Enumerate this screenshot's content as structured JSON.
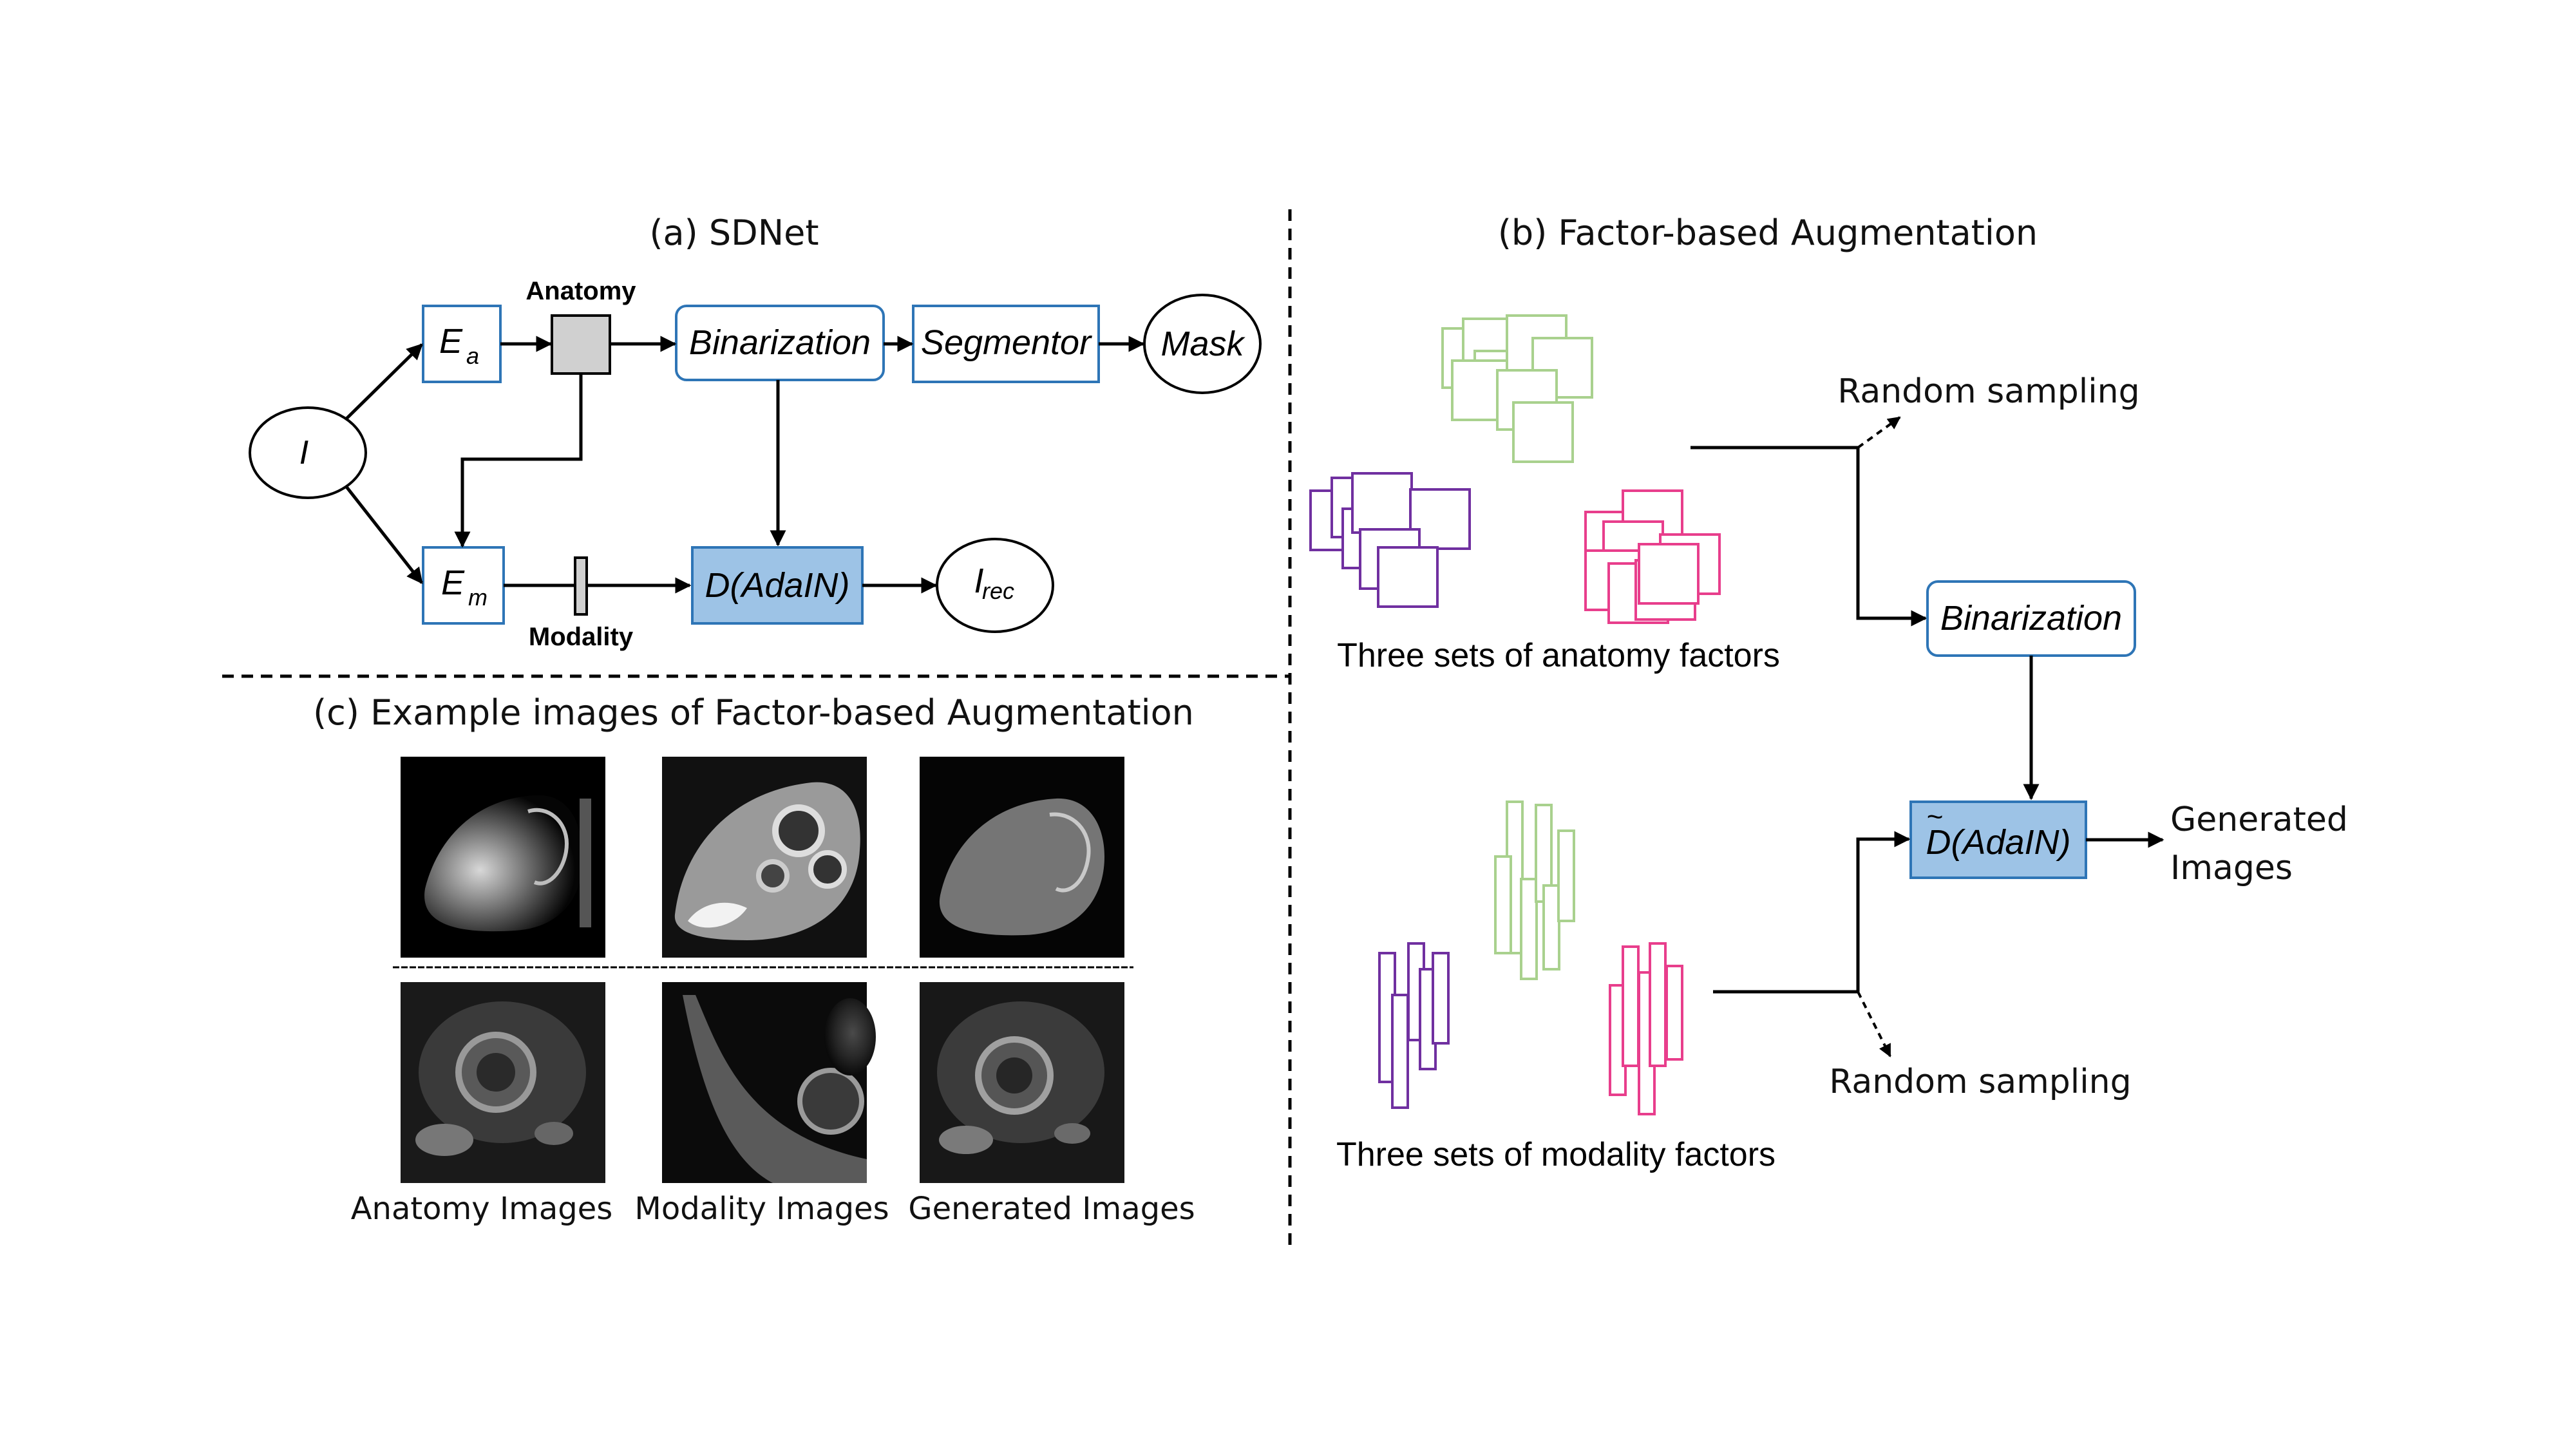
{
  "panel_a": {
    "title": "(a) SDNet",
    "input_label": "I",
    "ea_label": "E",
    "ea_sub": "a",
    "em_label": "E",
    "em_sub": "m",
    "anatomy_label": "Anatomy",
    "modality_label": "Modality",
    "binarization_label": "Binarization",
    "segmentor_label": "Segmentor",
    "mask_label": "Mask",
    "decoder_label": "D(AdaIN)",
    "rec_label": "I",
    "rec_sub": "rec"
  },
  "panel_b": {
    "title": "(b) Factor-based Augmentation",
    "anatomy_caption": "Three sets of anatomy factors",
    "modality_caption": "Three sets of modality factors",
    "random_sampling_top": "Random sampling",
    "random_sampling_bottom": "Random sampling",
    "binarization_label": "Binarization",
    "decoder_label": "D(AdaIN)",
    "decoder_tilde": "~",
    "output_line1": "Generated",
    "output_line2": "Images"
  },
  "panel_c": {
    "title": "(c) Example images of  Factor-based Augmentation",
    "col_labels": [
      "Anatomy Images",
      "Modality Images",
      "Generated Images"
    ]
  },
  "colors": {
    "box_border": "#2e75b6",
    "decoder_fill": "#9dc3e6",
    "green_factor": "#a9d18e",
    "purple_factor": "#7030a0",
    "pink_factor": "#e83e8c",
    "anatomy_square": "#d0d0d0"
  }
}
